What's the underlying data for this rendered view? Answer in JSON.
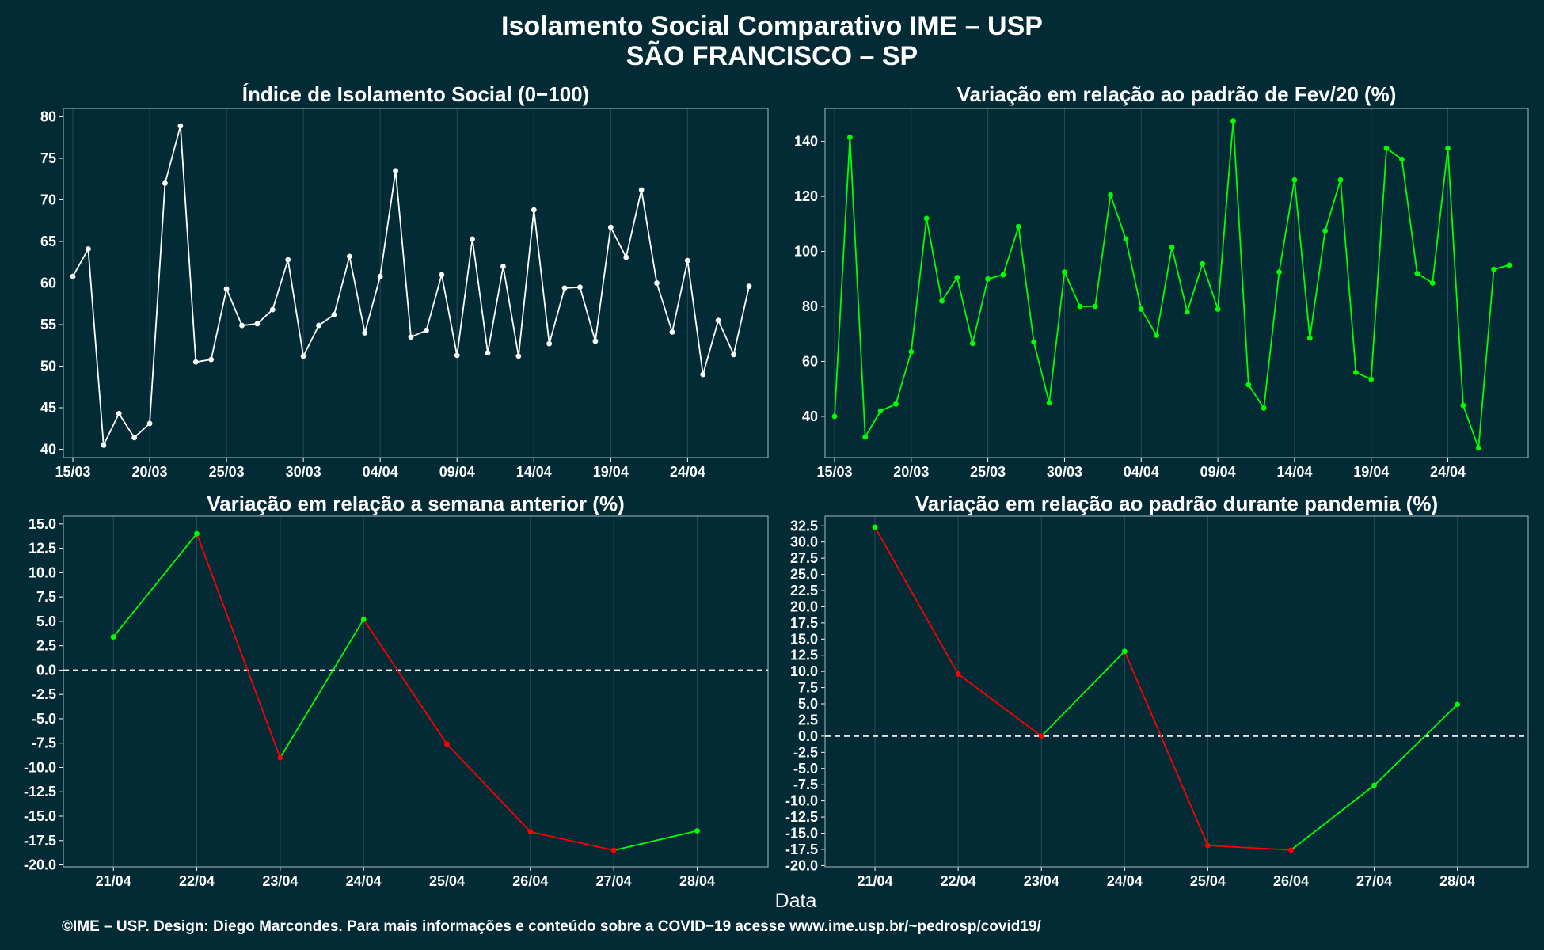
{
  "title_line1": "Isolamento Social Comparativo IME – USP",
  "title_line2": "SÃO FRANCISCO – SP",
  "xlabel": "Data",
  "footer": "©IME – USP. Design: Diego Marcondes. Para mais informações e conteúdo sobre a COVID−19 acesse www.ime.usp.br/~pedrosp/covid19/",
  "colors": {
    "background": "#022b36",
    "white_line": "#ffffff",
    "green": "#00ff00",
    "red": "#ff0000",
    "grid": "#2c4a55"
  },
  "chart_data": [
    {
      "type": "line",
      "title": "Índice de Isolamento Social (0−100)",
      "x_start": "15/03",
      "x_tick_labels": [
        "15/03",
        "20/03",
        "25/03",
        "30/03",
        "04/04",
        "09/04",
        "14/04",
        "19/04",
        "24/04"
      ],
      "ylim": [
        39,
        81
      ],
      "y_ticks": [
        40,
        45,
        50,
        55,
        60,
        65,
        70,
        75,
        80
      ],
      "series": [
        {
          "color": "#ffffff",
          "values": [
            60.8,
            64.1,
            40.5,
            44.3,
            41.4,
            43.1,
            72.0,
            78.9,
            50.5,
            50.8,
            59.3,
            54.9,
            55.1,
            56.8,
            62.8,
            51.2,
            54.9,
            56.2,
            63.2,
            54.0,
            60.8,
            73.5,
            53.5,
            54.3,
            61.0,
            51.3,
            65.3,
            51.6,
            62.0,
            51.2,
            68.8,
            52.7,
            59.4,
            59.5,
            53.0,
            66.7,
            63.1,
            71.2,
            60.0,
            54.1,
            62.7,
            49.0,
            55.5,
            51.4,
            59.6
          ]
        }
      ],
      "grid": true
    },
    {
      "type": "line",
      "title": "Variação em relação ao padrão de Fev/20 (%)",
      "x_start": "15/03",
      "x_tick_labels": [
        "15/03",
        "20/03",
        "25/03",
        "30/03",
        "04/04",
        "09/04",
        "14/04",
        "19/04",
        "24/04"
      ],
      "ylim": [
        25,
        152
      ],
      "y_ticks": [
        40,
        60,
        80,
        100,
        120,
        140
      ],
      "series": [
        {
          "color": "#00ff00",
          "values": [
            40.0,
            141.5,
            32.5,
            42.0,
            44.5,
            63.5,
            112.0,
            82.0,
            90.5,
            66.5,
            90.0,
            91.5,
            109.0,
            67.0,
            45.0,
            92.5,
            80.0,
            80.0,
            120.5,
            104.5,
            79.0,
            69.5,
            101.5,
            78.0,
            95.5,
            79.0,
            147.5,
            51.5,
            43.0,
            92.5,
            126.0,
            68.5,
            107.5,
            126.0,
            56.0,
            53.5,
            137.5,
            133.5,
            92.0,
            88.5,
            137.5,
            44.0,
            28.5,
            93.5,
            95.0
          ]
        }
      ],
      "grid": true
    },
    {
      "type": "line",
      "title": "Variação em relação a semana anterior (%)",
      "categories": [
        "21/04",
        "22/04",
        "23/04",
        "24/04",
        "25/04",
        "26/04",
        "27/04",
        "28/04"
      ],
      "ylim": [
        -20.2,
        15.8
      ],
      "y_ticks": [
        -20.0,
        -17.5,
        -15.0,
        -12.5,
        -10.0,
        -7.5,
        -5.0,
        -2.5,
        0.0,
        2.5,
        5.0,
        7.5,
        10.0,
        12.5,
        15.0
      ],
      "series": [
        {
          "values": [
            3.4,
            14.0,
            -9.0,
            5.2,
            -7.6,
            -16.6,
            -18.5,
            -16.5
          ]
        }
      ],
      "up_color": "#00ff00",
      "down_color": "#ff0000",
      "reference_line": 0,
      "grid": true
    },
    {
      "type": "line",
      "title": "Variação em relação ao padrão durante pandemia (%)",
      "categories": [
        "21/04",
        "22/04",
        "23/04",
        "24/04",
        "25/04",
        "26/04",
        "27/04",
        "28/04"
      ],
      "ylim": [
        -20.2,
        34.0
      ],
      "y_ticks": [
        -20.0,
        -17.5,
        -15.0,
        -12.5,
        -10.0,
        -7.5,
        -5.0,
        -2.5,
        0.0,
        2.5,
        5.0,
        7.5,
        10.0,
        12.5,
        15.0,
        17.5,
        20.0,
        22.5,
        25.0,
        27.5,
        30.0,
        32.5
      ],
      "series": [
        {
          "values": [
            32.3,
            9.6,
            0.0,
            13.1,
            -16.9,
            -17.6,
            -7.6,
            4.9
          ]
        }
      ],
      "up_color": "#00ff00",
      "down_color": "#ff0000",
      "reference_line": 0,
      "grid": true
    }
  ]
}
